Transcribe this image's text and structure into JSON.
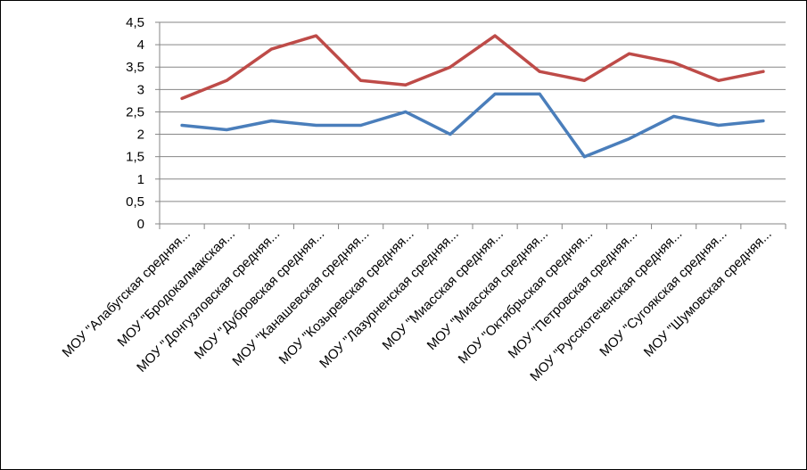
{
  "chart_data": {
    "type": "line",
    "title": "",
    "xlabel": "",
    "ylabel": "",
    "ylim": [
      0,
      4.5
    ],
    "yticks": [
      "0",
      "0,5",
      "1",
      "1,5",
      "2",
      "2,5",
      "3",
      "3,5",
      "4",
      "4,5"
    ],
    "grid": true,
    "legend": "none",
    "categories": [
      "МОУ \"Алабугская средняя...",
      "МОУ \"Бродокалмакская...",
      "МОУ \"Донгузловская средняя...",
      "МОУ \"Дубровская средняя...",
      "МОУ \"Канашевская средняя...",
      "МОУ \"Козыревская средняя...",
      "МОУ \"Лазурненская средняя...",
      "МОУ \"Миасская средняя...",
      "МОУ \"Миасская средняя...",
      "МОУ \"Октябрьская средняя...",
      "МОУ \"Петровская средняя...",
      "МОУ \"Русскотеченская средняя...",
      "МОУ \"Сугоякская средняя...",
      "МОУ \"Шумовская средняя..."
    ],
    "series": [
      {
        "color": "#4a7ebb",
        "values": [
          2.2,
          2.1,
          2.3,
          2.2,
          2.2,
          2.5,
          2.0,
          2.9,
          2.9,
          1.5,
          1.9,
          2.4,
          2.2,
          2.3
        ]
      },
      {
        "color": "#be4b48",
        "values": [
          2.8,
          3.2,
          3.9,
          4.2,
          3.2,
          3.1,
          3.5,
          4.2,
          3.4,
          3.2,
          3.8,
          3.6,
          3.2,
          3.4
        ]
      }
    ],
    "colors": {
      "grid": "#868686",
      "axis": "#868686"
    }
  }
}
